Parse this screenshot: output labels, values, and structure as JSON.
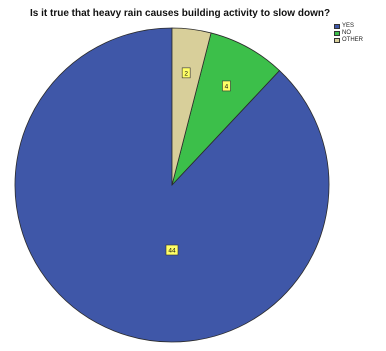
{
  "chart_data": {
    "type": "pie",
    "title": "Is it true that heavy rain causes building activity to slow down?",
    "categories": [
      "YES",
      "NO",
      "OTHER"
    ],
    "values": [
      44,
      4,
      2
    ],
    "colors": [
      "#3f57a8",
      "#3cbf4a",
      "#d8cf9a"
    ],
    "data_labels": [
      "44",
      "4",
      "2"
    ],
    "legend_position": "top-right",
    "start_angle_deg": 0,
    "direction": "counterclockwise"
  }
}
